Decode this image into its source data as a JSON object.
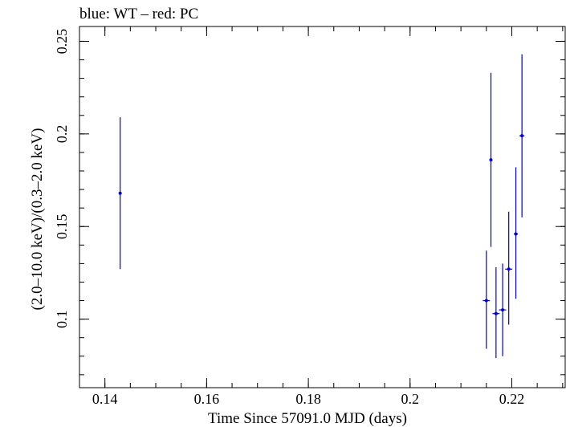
{
  "chart_data": {
    "type": "scatter",
    "title": "blue: WT – red: PC",
    "xlabel": "Time Since 57091.0 MJD (days)",
    "ylabel": "(2.0–10.0 keV)/(0.3–2.0 keV)",
    "xlim": [
      0.135,
      0.2305
    ],
    "ylim": [
      0.063,
      0.258
    ],
    "x_ticks": [
      0.14,
      0.16,
      0.18,
      0.2,
      0.22
    ],
    "x_tick_labels": [
      "0.14",
      "0.16",
      "0.18",
      "0.2",
      "0.22"
    ],
    "y_ticks": [
      0.1,
      0.15,
      0.2,
      0.25
    ],
    "y_tick_labels": [
      "0.1",
      "0.15",
      "0.2",
      "0.25"
    ],
    "grid": false,
    "series": [
      {
        "color": "#0000cc",
        "points": [
          {
            "x": 0.143,
            "xerr": 0.0003,
            "y": 0.168,
            "ylo": 0.127,
            "yhi": 0.209
          },
          {
            "x": 0.215,
            "xerr": 0.0007,
            "y": 0.11,
            "ylo": 0.084,
            "yhi": 0.137
          },
          {
            "x": 0.2159,
            "xerr": 0.0003,
            "y": 0.186,
            "ylo": 0.139,
            "yhi": 0.233
          },
          {
            "x": 0.2169,
            "xerr": 0.0007,
            "y": 0.103,
            "ylo": 0.079,
            "yhi": 0.128
          },
          {
            "x": 0.2182,
            "xerr": 0.0007,
            "y": 0.105,
            "ylo": 0.08,
            "yhi": 0.13
          },
          {
            "x": 0.2194,
            "xerr": 0.0007,
            "y": 0.127,
            "ylo": 0.097,
            "yhi": 0.158
          },
          {
            "x": 0.2208,
            "xerr": 0.0004,
            "y": 0.146,
            "ylo": 0.111,
            "yhi": 0.182
          },
          {
            "x": 0.222,
            "xerr": 0.0005,
            "y": 0.199,
            "ylo": 0.155,
            "yhi": 0.243
          }
        ]
      }
    ]
  }
}
